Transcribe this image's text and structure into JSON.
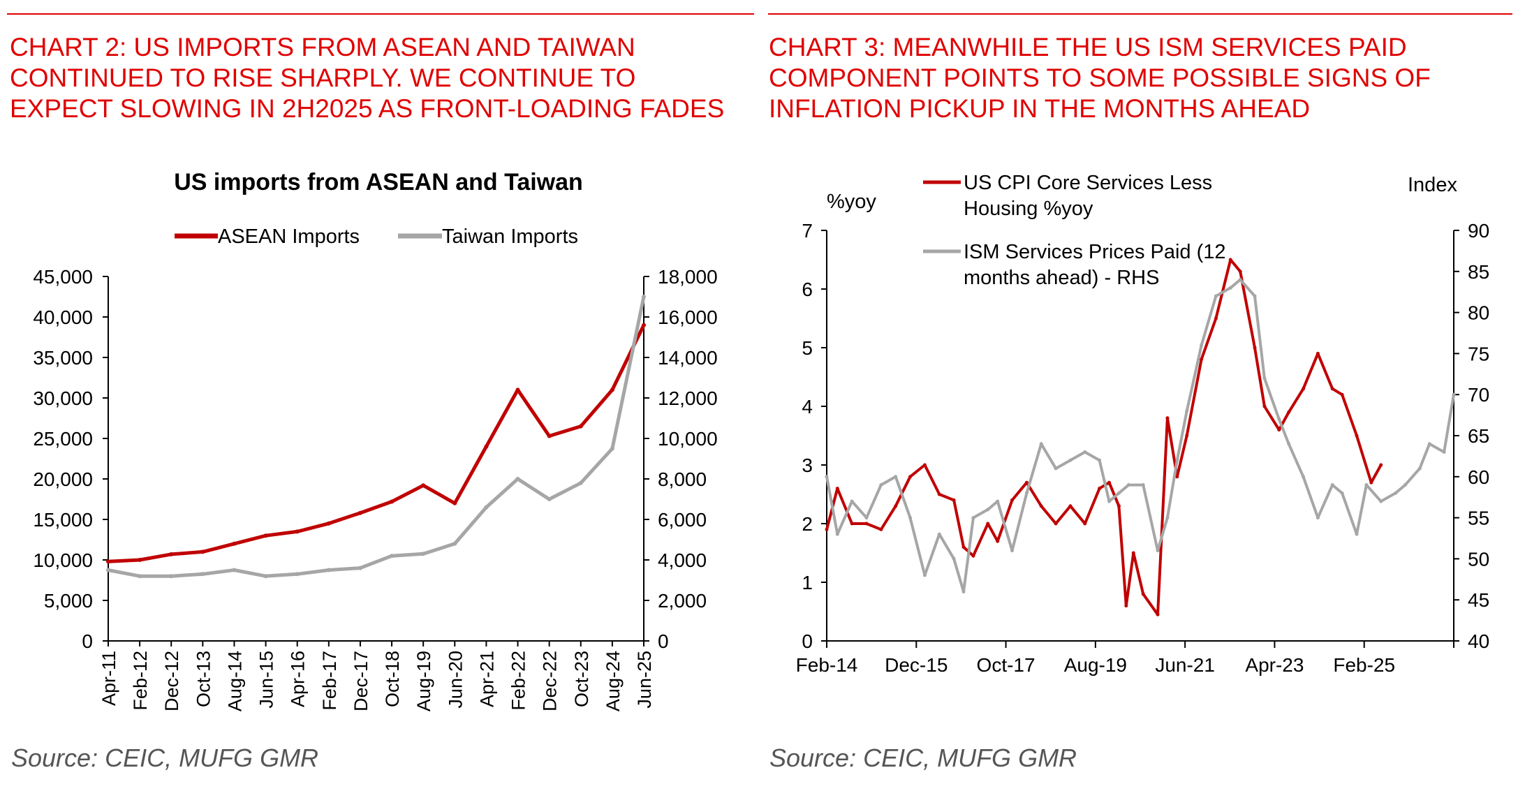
{
  "left_panel": {
    "heading_lines": [
      "CHART 2: US IMPORTS FROM ASEAN AND TAIWAN",
      "CONTINUED TO RISE SHARPLY. WE CONTINUE TO",
      "EXPECT SLOWING IN 2H2025 AS FRONT-LOADING FADES"
    ],
    "source": "Source: CEIC, MUFG GMR"
  },
  "right_panel": {
    "heading_lines": [
      "CHART 3: MEANWHILE THE US ISM SERVICES PAID",
      "COMPONENT POINTS TO SOME POSSIBLE SIGNS OF",
      "INFLATION PICKUP IN THE MONTHS AHEAD"
    ],
    "source": "Source: CEIC, MUFG GMR"
  },
  "colors": {
    "accent_red": "#e00000",
    "series_red": "#c00000",
    "series_grey": "#a6a6a6",
    "axis": "#000000"
  },
  "chart_data": [
    {
      "type": "line",
      "title": "US imports from ASEAN and Taiwan",
      "legend": [
        "ASEAN Imports",
        "Taiwan Imports"
      ],
      "legend_position": "top",
      "categories": [
        "Apr-11",
        "Feb-12",
        "Dec-12",
        "Oct-13",
        "Aug-14",
        "Jun-15",
        "Apr-16",
        "Feb-17",
        "Dec-17",
        "Oct-18",
        "Aug-19",
        "Jun-20",
        "Apr-21",
        "Feb-22",
        "Dec-22",
        "Oct-23",
        "Aug-24",
        "Jun-25"
      ],
      "y_left": {
        "ylim": [
          0,
          45000
        ],
        "ticks": [
          "0",
          "5,000",
          "10,000",
          "15,000",
          "20,000",
          "25,000",
          "30,000",
          "35,000",
          "40,000",
          "45,000"
        ]
      },
      "y_right": {
        "ylim": [
          0,
          18000
        ],
        "ticks": [
          "0",
          "2,000",
          "4,000",
          "6,000",
          "8,000",
          "10,000",
          "12,000",
          "14,000",
          "16,000",
          "18,000"
        ]
      },
      "series": [
        {
          "name": "ASEAN Imports",
          "axis": "left",
          "color": "#c00000",
          "values": [
            9800,
            10000,
            10700,
            11000,
            12000,
            13000,
            13500,
            14500,
            15800,
            17200,
            19200,
            17000,
            24000,
            31000,
            25300,
            26500,
            31000,
            39000
          ]
        },
        {
          "name": "Taiwan Imports",
          "axis": "right",
          "color": "#a6a6a6",
          "values": [
            3500,
            3200,
            3200,
            3300,
            3500,
            3200,
            3300,
            3500,
            3600,
            4200,
            4300,
            4800,
            6600,
            8000,
            7000,
            7800,
            9500,
            17000
          ]
        }
      ]
    },
    {
      "type": "line",
      "title": "",
      "legend": [
        "US CPI Core Services Less Housing %yoy",
        "ISM Services Prices Paid (12 months ahead) - RHS"
      ],
      "legend_position": "top-left",
      "legend_lines": [
        [
          "US CPI Core Services Less",
          "Housing %yoy"
        ],
        [
          "ISM Services Prices Paid (12",
          "months ahead) - RHS"
        ]
      ],
      "left_axis_title": "%yoy",
      "right_axis_title": "Index",
      "x_tick_labels": [
        "Feb-14",
        "Dec-15",
        "Oct-17",
        "Aug-19",
        "Jun-21",
        "Apr-23",
        "Feb-25"
      ],
      "x_range_years": [
        2014.08,
        2027.0
      ],
      "y_left": {
        "ylim": [
          0,
          7
        ],
        "ticks": [
          "0",
          "1",
          "2",
          "3",
          "4",
          "5",
          "6",
          "7"
        ]
      },
      "y_right": {
        "ylim": [
          40,
          90
        ],
        "ticks": [
          "40",
          "45",
          "50",
          "55",
          "60",
          "65",
          "70",
          "75",
          "80",
          "85",
          "90"
        ]
      },
      "series": [
        {
          "name": "US CPI Core Services Less Housing %yoy",
          "axis": "left",
          "color": "#c00000",
          "x": [
            2014.08,
            2014.3,
            2014.6,
            2014.9,
            2015.2,
            2015.5,
            2015.8,
            2016.1,
            2016.4,
            2016.7,
            2016.9,
            2017.1,
            2017.4,
            2017.6,
            2017.9,
            2018.2,
            2018.5,
            2018.8,
            2019.1,
            2019.4,
            2019.7,
            2019.9,
            2020.1,
            2020.25,
            2020.4,
            2020.6,
            2020.9,
            2021.1,
            2021.3,
            2021.5,
            2021.8,
            2022.1,
            2022.4,
            2022.6,
            2022.9,
            2023.1,
            2023.4,
            2023.6,
            2023.9,
            2024.2,
            2024.5,
            2024.7,
            2025.0,
            2025.3,
            2025.5
          ],
          "values": [
            1.9,
            2.6,
            2.0,
            2.0,
            1.9,
            2.3,
            2.8,
            3.0,
            2.5,
            2.4,
            1.6,
            1.45,
            2.0,
            1.7,
            2.4,
            2.7,
            2.3,
            2.0,
            2.3,
            2.0,
            2.6,
            2.7,
            2.3,
            0.6,
            1.5,
            0.8,
            0.45,
            3.8,
            2.8,
            3.5,
            4.8,
            5.5,
            6.5,
            6.3,
            5.0,
            4.0,
            3.6,
            3.9,
            4.3,
            4.9,
            4.3,
            4.2,
            3.5,
            2.7,
            3.0
          ]
        },
        {
          "name": "ISM Services Prices Paid (12 months ahead) - RHS",
          "axis": "right",
          "color": "#a6a6a6",
          "x": [
            2014.08,
            2014.3,
            2014.6,
            2014.9,
            2015.2,
            2015.5,
            2015.8,
            2016.1,
            2016.4,
            2016.7,
            2016.9,
            2017.1,
            2017.4,
            2017.6,
            2017.9,
            2018.2,
            2018.5,
            2018.8,
            2019.1,
            2019.4,
            2019.7,
            2019.9,
            2020.1,
            2020.3,
            2020.6,
            2020.9,
            2021.1,
            2021.3,
            2021.5,
            2021.8,
            2022.1,
            2022.4,
            2022.6,
            2022.9,
            2023.1,
            2023.4,
            2023.6,
            2023.9,
            2024.2,
            2024.5,
            2024.7,
            2025.0,
            2025.2,
            2025.5,
            2025.8,
            2026.0,
            2026.3,
            2026.5,
            2026.8,
            2027.0
          ],
          "values": [
            60,
            53,
            57,
            55,
            59,
            60,
            55,
            48,
            53,
            50,
            46,
            55,
            56,
            57,
            51,
            58,
            64,
            61,
            62,
            63,
            62,
            57,
            58,
            59,
            59,
            51,
            55,
            62,
            68,
            76,
            82,
            83,
            84,
            82,
            72,
            67,
            64,
            60,
            55,
            59,
            58,
            53,
            59,
            57,
            58,
            59,
            61,
            64,
            63,
            70
          ]
        }
      ]
    }
  ]
}
